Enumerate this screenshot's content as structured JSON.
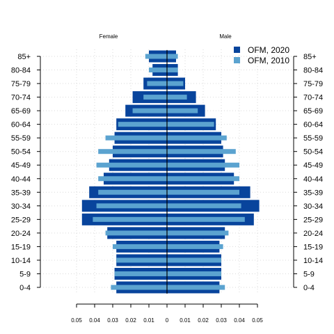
{
  "chart_data": {
    "type": "bar",
    "orientation": "horizontal",
    "layout": "population-pyramid",
    "panel_labels": {
      "left": "Female",
      "right": "Male"
    },
    "categories": [
      "0-4",
      "5-9",
      "10-14",
      "15-19",
      "20-24",
      "25-29",
      "30-34",
      "35-39",
      "40-44",
      "45-49",
      "50-54",
      "55-59",
      "60-64",
      "65-69",
      "70-74",
      "75-79",
      "80-84",
      "85+"
    ],
    "series": [
      {
        "name": "OFM, 2020",
        "color": "#08449c",
        "female": [
          0.028,
          0.029,
          0.028,
          0.028,
          0.033,
          0.047,
          0.047,
          0.043,
          0.035,
          0.032,
          0.03,
          0.029,
          0.028,
          0.023,
          0.019,
          0.013,
          0.008,
          0.01
        ],
        "male": [
          0.029,
          0.03,
          0.03,
          0.029,
          0.032,
          0.048,
          0.051,
          0.046,
          0.037,
          0.032,
          0.031,
          0.03,
          0.027,
          0.021,
          0.016,
          0.01,
          0.006,
          0.005
        ]
      },
      {
        "name": "OFM, 2010",
        "color": "#5ba3d0",
        "female": [
          0.031,
          0.029,
          0.028,
          0.03,
          0.034,
          0.041,
          0.039,
          0.038,
          0.038,
          0.039,
          0.038,
          0.034,
          0.027,
          0.019,
          0.013,
          0.011,
          0.01,
          0.012
        ],
        "male": [
          0.032,
          0.03,
          0.03,
          0.031,
          0.034,
          0.043,
          0.041,
          0.04,
          0.04,
          0.04,
          0.038,
          0.033,
          0.026,
          0.017,
          0.011,
          0.009,
          0.006,
          0.006
        ]
      }
    ],
    "x_ticks": [
      0.05,
      0.04,
      0.03,
      0.02,
      0.01,
      0,
      0.01,
      0.02,
      0.03,
      0.04,
      0.05
    ],
    "xlim": [
      -0.05,
      0.05
    ],
    "grid": true,
    "legend_position": "top-right",
    "title": "",
    "xlabel": "",
    "ylabel": ""
  }
}
